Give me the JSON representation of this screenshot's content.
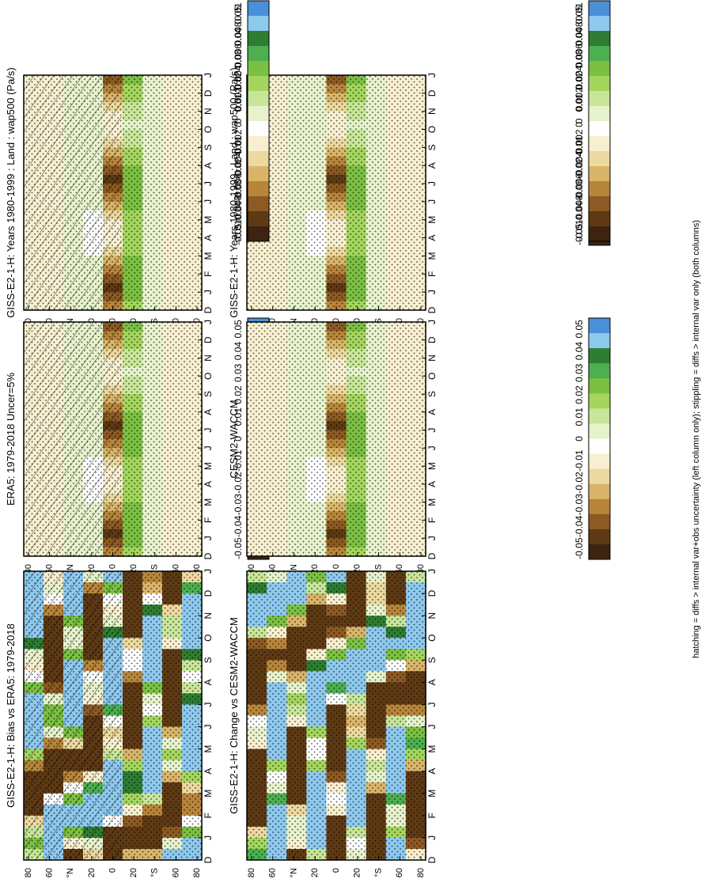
{
  "figure": {
    "caption": "hatching = diffs > internal var+obs uncertainty (left column only); stippling = diffs > internal var only (both columns)"
  },
  "chart_data": [
    {
      "type": "heatmap",
      "panel": "left-top",
      "title": "GISS-E2-1-H: Years 1980-1999 : Land : wap500 (Pa/s)",
      "xlabel": "",
      "ylabel": "",
      "x_ticks": [
        "D",
        "J",
        "F",
        "M",
        "A",
        "M",
        "J",
        "J",
        "A",
        "S",
        "O",
        "N",
        "D",
        "J"
      ],
      "y_ticks": [
        "80",
        "60",
        "°N",
        "20",
        "0",
        "20",
        "°S",
        "60",
        "80"
      ],
      "colorbar_labels": [
        "0.05",
        "0.04",
        "0.03",
        "0.02",
        "0.01",
        "0",
        "-0.01",
        "-0.02",
        "-0.03",
        "-0.04",
        "-0.05"
      ],
      "hatching": true,
      "stippling": true,
      "scale": 0.05
    },
    {
      "type": "heatmap",
      "panel": "right-top",
      "title": "GISS-E2-1-H: Years 1980-1999 : Land : wap500 (Pa/s)",
      "xlabel": "",
      "ylabel": "",
      "x_ticks": [
        "D",
        "J",
        "F",
        "M",
        "A",
        "M",
        "J",
        "J",
        "A",
        "S",
        "O",
        "N",
        "D",
        "J"
      ],
      "y_ticks": [
        "80",
        "60",
        "°N",
        "20",
        "0",
        "20",
        "°S",
        "60",
        "80"
      ],
      "colorbar_labels": [
        "0.05",
        "0.04",
        "0.03",
        "0.02",
        "0.01",
        "0",
        "-0.01",
        "-0.02",
        "-0.03",
        "-0.04",
        "-0.05"
      ],
      "hatching": false,
      "stippling": true,
      "scale": 0.05
    },
    {
      "type": "heatmap",
      "panel": "left-middle",
      "title": "ERA5: 1979-2018 Uncer=5%",
      "xlabel": "",
      "ylabel": "",
      "x_ticks": [
        "D",
        "J",
        "F",
        "M",
        "A",
        "M",
        "J",
        "J",
        "A",
        "S",
        "O",
        "N",
        "D",
        "J"
      ],
      "y_ticks": [
        "80",
        "60",
        "°N",
        "20",
        "0",
        "20",
        "°S",
        "60",
        "80"
      ],
      "colorbar_labels": [
        "0.05",
        "0.04",
        "0.03",
        "0.02",
        "0.01",
        "0",
        "-0.01",
        "-0.02",
        "-0.03",
        "-0.04",
        "-0.05"
      ],
      "hatching": true,
      "stippling": true,
      "scale": 0.05
    },
    {
      "type": "heatmap",
      "panel": "right-middle",
      "title": "CESM2-WACCM",
      "xlabel": "",
      "ylabel": "",
      "x_ticks": [
        "D",
        "J",
        "F",
        "M",
        "A",
        "M",
        "J",
        "J",
        "A",
        "S",
        "O",
        "N",
        "D",
        "J"
      ],
      "y_ticks": [
        "80",
        "60",
        "°N",
        "20",
        "0",
        "20",
        "°S",
        "60",
        "80"
      ],
      "colorbar_labels": [
        "0.05",
        "0.04",
        "0.03",
        "0.02",
        "0.01",
        "0",
        "-0.01",
        "-0.02",
        "-0.03",
        "-0.04",
        "-0.05"
      ],
      "hatching": false,
      "stippling": true,
      "scale": 0.05
    },
    {
      "type": "heatmap",
      "panel": "left-bottom",
      "title": "GISS-E2-1-H: Bias vs ERA5: 1979-2018",
      "xlabel": "",
      "ylabel": "",
      "x_ticks": [
        "D",
        "J",
        "F",
        "M",
        "A",
        "M",
        "J",
        "J",
        "A",
        "S",
        "O",
        "N",
        "D",
        "J"
      ],
      "y_ticks": [
        "80",
        "60",
        "°N",
        "20",
        "0",
        "20",
        "°S",
        "60",
        "80"
      ],
      "colorbar_labels": [
        "0.01",
        "0.008",
        "0.006",
        "0.004",
        "0.002",
        "0",
        "-0.002",
        "-0.004",
        "-0.006",
        "-0.008",
        "-0.01"
      ],
      "hatching": true,
      "stippling": true,
      "scale": 0.01
    },
    {
      "type": "heatmap",
      "panel": "right-bottom",
      "title": "GISS-E2-1-H: Change vs CESM2-WACCM",
      "xlabel": "",
      "ylabel": "",
      "x_ticks": [
        "D",
        "J",
        "F",
        "M",
        "A",
        "M",
        "J",
        "J",
        "A",
        "S",
        "O",
        "N",
        "D",
        "J"
      ],
      "y_ticks": [
        "80",
        "60",
        "°N",
        "20",
        "0",
        "20",
        "°S",
        "60",
        "80"
      ],
      "colorbar_labels": [
        "0.01",
        "0.008",
        "0.006",
        "0.004",
        "0.002",
        "0",
        "-0.002",
        "-0.004",
        "-0.006",
        "-0.008",
        "-0.01"
      ],
      "hatching": false,
      "stippling": true,
      "scale": 0.01
    }
  ],
  "colors": {
    "scale": [
      "#4a90d9",
      "#8ec9ee",
      "#2e7d32",
      "#4caf50",
      "#7bc043",
      "#a4d65e",
      "#c8e69a",
      "#e6f2cc",
      "#ffffff",
      "#f7efd0",
      "#ecd9a0",
      "#d9b56a",
      "#b8863b",
      "#8c5a23",
      "#5e3a14",
      "#3d2410"
    ],
    "frame": "#000000"
  }
}
